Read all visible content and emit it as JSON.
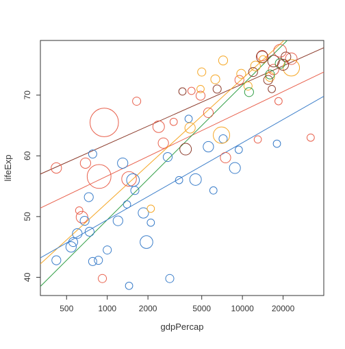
{
  "chart_data": {
    "type": "scatter",
    "title": "",
    "xlabel": "gdpPercap",
    "ylabel": "lifeExp",
    "x_scale": "log",
    "xlim": [
      320,
      40000
    ],
    "ylim": [
      37,
      79
    ],
    "grid": false,
    "legend": "none",
    "x_ticks": [
      500,
      1000,
      2000,
      5000,
      10000,
      20000
    ],
    "x_tick_labels": [
      "500",
      "1000",
      "2000",
      "5000",
      "10000",
      "20000"
    ],
    "y_ticks": [
      40,
      50,
      60,
      70
    ],
    "y_tick_labels": [
      "40",
      "50",
      "60",
      "70"
    ],
    "series": [
      {
        "color": "#e8604c",
        "points": [
          {
            "x": 950,
            "y": 65.5,
            "size": 3.0
          },
          {
            "x": 870,
            "y": 56.6,
            "size": 2.1
          },
          {
            "x": 1450,
            "y": 56.2,
            "size": 0.8
          },
          {
            "x": 420,
            "y": 58.0,
            "size": 0.4
          },
          {
            "x": 690,
            "y": 58.8,
            "size": 0.4
          },
          {
            "x": 650,
            "y": 49.9,
            "size": 0.5
          },
          {
            "x": 2400,
            "y": 64.8,
            "size": 0.5
          },
          {
            "x": 2600,
            "y": 62.1,
            "size": 0.4
          },
          {
            "x": 1650,
            "y": 69.0,
            "size": 0.25
          },
          {
            "x": 5600,
            "y": 67.1,
            "size": 0.35
          },
          {
            "x": 4900,
            "y": 69.9,
            "size": 0.3
          },
          {
            "x": 7500,
            "y": 59.7,
            "size": 0.4
          },
          {
            "x": 14000,
            "y": 76.5,
            "size": 0.4
          },
          {
            "x": 19000,
            "y": 77.3,
            "size": 0.6
          },
          {
            "x": 17000,
            "y": 74.2,
            "size": 0.4
          },
          {
            "x": 23000,
            "y": 76.0,
            "size": 0.5
          },
          {
            "x": 13000,
            "y": 62.7,
            "size": 0.2
          },
          {
            "x": 32000,
            "y": 63.0,
            "size": 0.2
          },
          {
            "x": 4200,
            "y": 70.7,
            "size": 0.2
          },
          {
            "x": 9500,
            "y": 72.5,
            "size": 0.3
          },
          {
            "x": 920,
            "y": 39.8,
            "size": 0.25
          },
          {
            "x": 620,
            "y": 51.0,
            "size": 0.2
          },
          {
            "x": 3100,
            "y": 65.6,
            "size": 0.2
          },
          {
            "x": 18500,
            "y": 69.0,
            "size": 0.2
          }
        ]
      },
      {
        "color": "#3a7dc9",
        "points": [
          {
            "x": 1300,
            "y": 58.8,
            "size": 0.4
          },
          {
            "x": 1550,
            "y": 56.0,
            "size": 0.6
          },
          {
            "x": 1850,
            "y": 50.6,
            "size": 0.4
          },
          {
            "x": 1950,
            "y": 45.8,
            "size": 0.6
          },
          {
            "x": 1200,
            "y": 49.3,
            "size": 0.35
          },
          {
            "x": 780,
            "y": 60.3,
            "size": 0.25
          },
          {
            "x": 730,
            "y": 53.2,
            "size": 0.3
          },
          {
            "x": 540,
            "y": 45.0,
            "size": 0.4
          },
          {
            "x": 420,
            "y": 42.8,
            "size": 0.3
          },
          {
            "x": 560,
            "y": 45.8,
            "size": 0.3
          },
          {
            "x": 600,
            "y": 47.2,
            "size": 0.35
          },
          {
            "x": 680,
            "y": 49.3,
            "size": 0.3
          },
          {
            "x": 740,
            "y": 47.5,
            "size": 0.3
          },
          {
            "x": 780,
            "y": 42.6,
            "size": 0.25
          },
          {
            "x": 860,
            "y": 42.8,
            "size": 0.25
          },
          {
            "x": 1000,
            "y": 44.5,
            "size": 0.25
          },
          {
            "x": 1400,
            "y": 52.0,
            "size": 0.2
          },
          {
            "x": 1600,
            "y": 54.3,
            "size": 0.25
          },
          {
            "x": 2100,
            "y": 49.0,
            "size": 0.2
          },
          {
            "x": 2900,
            "y": 39.8,
            "size": 0.25
          },
          {
            "x": 4500,
            "y": 56.1,
            "size": 0.5
          },
          {
            "x": 5600,
            "y": 61.5,
            "size": 0.4
          },
          {
            "x": 8800,
            "y": 58.0,
            "size": 0.45
          },
          {
            "x": 1450,
            "y": 38.6,
            "size": 0.2
          },
          {
            "x": 2800,
            "y": 59.8,
            "size": 0.3
          },
          {
            "x": 3400,
            "y": 56.0,
            "size": 0.2
          },
          {
            "x": 4000,
            "y": 66.1,
            "size": 0.2
          },
          {
            "x": 6100,
            "y": 54.3,
            "size": 0.2
          },
          {
            "x": 7200,
            "y": 62.8,
            "size": 0.25
          },
          {
            "x": 18000,
            "y": 62.0,
            "size": 0.2
          },
          {
            "x": 9400,
            "y": 61.0,
            "size": 0.2
          }
        ]
      },
      {
        "color": "#f5a623",
        "points": [
          {
            "x": 7000,
            "y": 63.4,
            "size": 1.0
          },
          {
            "x": 23000,
            "y": 74.5,
            "size": 1.0
          },
          {
            "x": 4100,
            "y": 64.6,
            "size": 0.4
          },
          {
            "x": 6300,
            "y": 72.6,
            "size": 0.3
          },
          {
            "x": 9800,
            "y": 73.5,
            "size": 0.3
          },
          {
            "x": 12500,
            "y": 74.8,
            "size": 0.35
          },
          {
            "x": 7200,
            "y": 75.7,
            "size": 0.3
          },
          {
            "x": 5000,
            "y": 73.8,
            "size": 0.25
          },
          {
            "x": 11000,
            "y": 71.5,
            "size": 0.25
          },
          {
            "x": 14200,
            "y": 75.9,
            "size": 0.2
          },
          {
            "x": 16000,
            "y": 73.0,
            "size": 0.3
          },
          {
            "x": 4900,
            "y": 71.0,
            "size": 0.2
          },
          {
            "x": 2100,
            "y": 51.3,
            "size": 0.2
          }
        ]
      },
      {
        "color": "#2f9e44",
        "points": [
          {
            "x": 11200,
            "y": 70.5,
            "size": 0.3
          },
          {
            "x": 16000,
            "y": 73.4,
            "size": 0.3
          },
          {
            "x": 19000,
            "y": 75.2,
            "size": 0.35
          }
        ]
      },
      {
        "color": "#8b3a2a",
        "points": [
          {
            "x": 3800,
            "y": 61.1,
            "size": 0.5
          },
          {
            "x": 14000,
            "y": 76.3,
            "size": 0.5
          },
          {
            "x": 17000,
            "y": 75.6,
            "size": 0.5
          },
          {
            "x": 20000,
            "y": 75.0,
            "size": 0.45
          },
          {
            "x": 21000,
            "y": 76.3,
            "size": 0.35
          },
          {
            "x": 15500,
            "y": 72.5,
            "size": 0.3
          },
          {
            "x": 12000,
            "y": 73.8,
            "size": 0.3
          },
          {
            "x": 6500,
            "y": 71.0,
            "size": 0.25
          },
          {
            "x": 3600,
            "y": 70.6,
            "size": 0.2
          },
          {
            "x": 16500,
            "y": 71.0,
            "size": 0.2
          }
        ]
      }
    ],
    "trend_lines": [
      {
        "color": "#8b3a2a",
        "from": [
          320,
          57.0
        ],
        "to": [
          40000,
          77.8
        ]
      },
      {
        "color": "#e8604c",
        "from": [
          320,
          51.4
        ],
        "to": [
          40000,
          73.8
        ]
      },
      {
        "color": "#f5a623",
        "from": [
          320,
          42.2
        ],
        "to": [
          40000,
          85.0
        ]
      },
      {
        "color": "#2f9e44",
        "from": [
          320,
          38.5
        ],
        "to": [
          40000,
          85.0
        ]
      },
      {
        "color": "#3a7dc9",
        "from": [
          320,
          43.2
        ],
        "to": [
          40000,
          69.8
        ]
      }
    ]
  }
}
